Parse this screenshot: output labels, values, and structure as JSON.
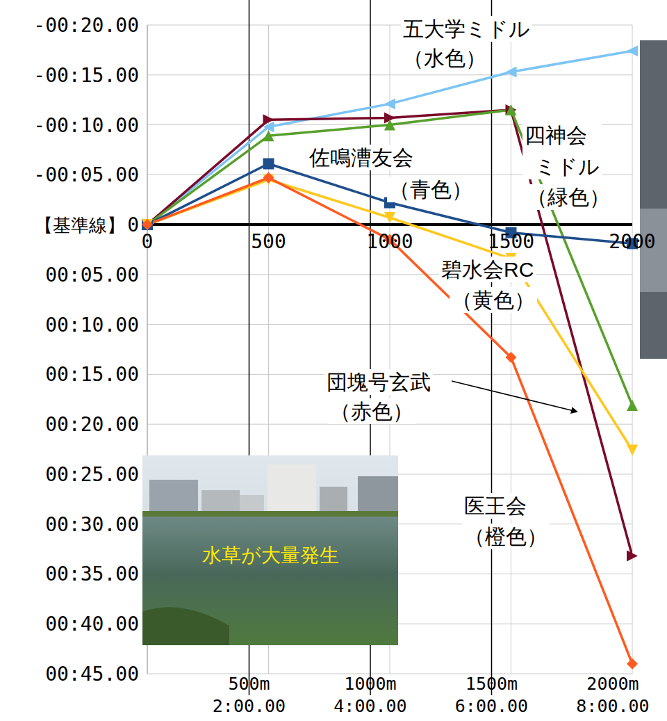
{
  "chart_data": {
    "type": "line",
    "x": [
      0,
      500,
      1000,
      1500,
      2000
    ],
    "xlim": [
      0,
      2000
    ],
    "xticks": [
      0,
      500,
      1000,
      1500,
      2000
    ],
    "ylim": [
      45,
      -20
    ],
    "yticks": [
      {
        "value": -20,
        "label": "-00:20.00"
      },
      {
        "value": -15,
        "label": "-00:15.00"
      },
      {
        "value": -10,
        "label": "-00:10.00"
      },
      {
        "value": -5,
        "label": "-00:05.00"
      },
      0,
      {
        "value": 5,
        "label": "00:05.00"
      },
      {
        "value": 10,
        "label": "00:10.00"
      },
      {
        "value": 15,
        "label": "00:15.00"
      },
      {
        "value": 20,
        "label": "00:20.00"
      },
      {
        "value": 25,
        "label": "00:25.00"
      },
      {
        "value": 30,
        "label": "00:30.00"
      },
      {
        "value": 35,
        "label": "00:35.00"
      },
      {
        "value": 40,
        "label": "00:40.00"
      },
      {
        "value": 45,
        "label": "00:45.00"
      }
    ],
    "grid": true,
    "baseline": 0,
    "baseline_label": "【基準線】",
    "series": [
      {
        "name": "五大学ミドル",
        "annotation": "（水色）",
        "color": "#7cc4f4",
        "marker": "triangle-left",
        "values": [
          0,
          -9.8,
          -12.1,
          -15.3,
          -17.4
        ]
      },
      {
        "name": "団塊号玄武",
        "annotation": "（赤色）",
        "color": "#7a0a2a",
        "marker": "triangle-right",
        "values": [
          0,
          -10.5,
          -10.7,
          -11.5,
          33.2
        ]
      },
      {
        "name": "四神会ミドル",
        "annotation": "（緑色）",
        "color": "#58a02c",
        "marker": "triangle",
        "values": [
          0,
          -8.9,
          -10.0,
          -11.5,
          18.1
        ]
      },
      {
        "name": "佐鳴漕友会",
        "annotation": "（青色）",
        "color": "#1f4e8c",
        "marker": "square",
        "values": [
          0,
          -6.1,
          -2.2,
          0.8,
          1.9
        ]
      },
      {
        "name": "碧水会RC",
        "annotation": "（黄色）",
        "color": "#ffc81e",
        "marker": "triangle-down",
        "values": [
          0,
          -4.5,
          -0.7,
          3.4,
          22.6
        ]
      },
      {
        "name": "医王会",
        "annotation": "（橙色）",
        "color": "#ff5a1f",
        "marker": "diamond",
        "values": [
          0,
          -4.7,
          1.5,
          13.3,
          44
        ]
      }
    ],
    "photo_caption": "水草が大量発生",
    "distance_labels": [
      {
        "distance": "500m",
        "time": "2:00.00"
      },
      {
        "distance": "1000m",
        "time": "4:00.00"
      },
      {
        "distance": "1500m",
        "time": "6:00.00"
      },
      {
        "distance": "2000m",
        "time": "8:00.00"
      }
    ]
  }
}
